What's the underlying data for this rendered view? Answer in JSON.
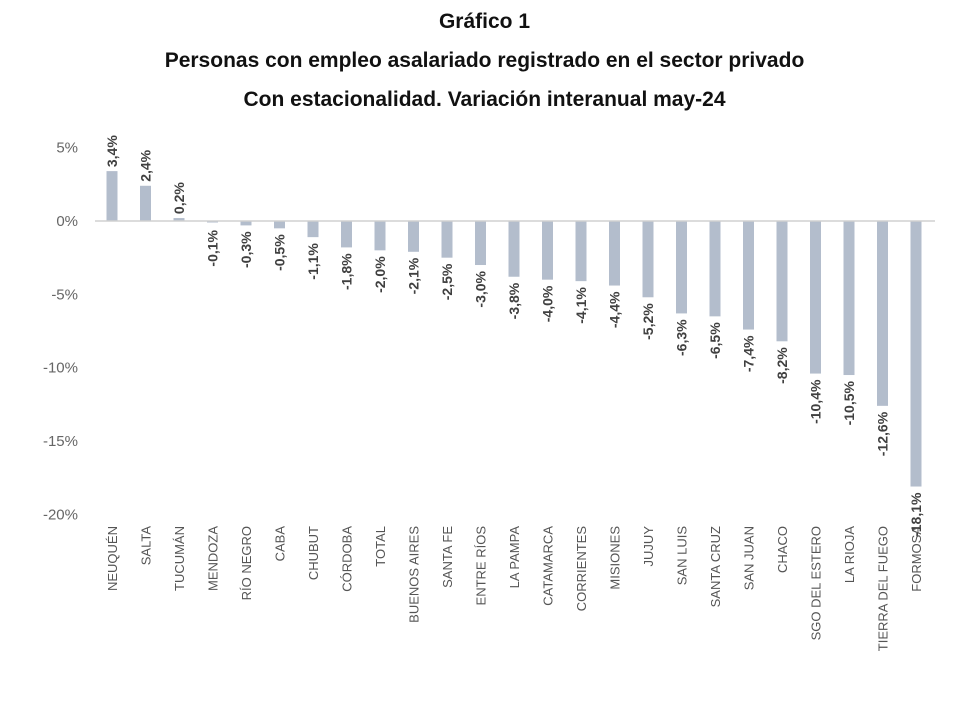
{
  "chart_data": {
    "type": "bar",
    "title": "Gráfico 1",
    "subtitle_1": "Personas con empleo asalariado registrado en el sector privado",
    "subtitle_2": "Con estacionalidad. Variación interanual may-24",
    "xlabel": "",
    "ylabel": "",
    "ylim": [
      -20,
      5
    ],
    "yticks": [
      5,
      0,
      -5,
      -10,
      -15,
      -20
    ],
    "ytick_labels": [
      "5%",
      "0%",
      "-5%",
      "-10%",
      "-15%",
      "-20%"
    ],
    "grid": false,
    "bar_color": "#b3bdcc",
    "categories": [
      "NEUQUÉN",
      "SALTA",
      "TUCUMÁN",
      "MENDOZA",
      "RÍO NEGRO",
      "CABA",
      "CHUBUT",
      "CÓRDOBA",
      "TOTAL",
      "BUENOS AIRES",
      "SANTA FE",
      "ENTRE RÍOS",
      "LA PAMPA",
      "CATAMARCA",
      "CORRIENTES",
      "MISIONES",
      "JUJUY",
      "SAN LUIS",
      "SANTA CRUZ",
      "SAN JUAN",
      "CHACO",
      "SGO DEL ESTERO",
      "LA RIOJA",
      "TIERRA DEL FUEGO",
      "FORMOSA"
    ],
    "values": [
      3.4,
      2.4,
      0.2,
      -0.1,
      -0.3,
      -0.5,
      -1.1,
      -1.8,
      -2.0,
      -2.1,
      -2.5,
      -3.0,
      -3.8,
      -4.0,
      -4.1,
      -4.4,
      -5.2,
      -6.3,
      -6.5,
      -7.4,
      -8.2,
      -10.4,
      -10.5,
      -12.6,
      -18.1
    ],
    "data_labels": [
      "3,4%",
      "2,4%",
      "0,2%",
      "-0,1%",
      "-0,3%",
      "-0,5%",
      "-1,1%",
      "-1,8%",
      "-2,0%",
      "-2,1%",
      "-2,5%",
      "-3,0%",
      "-3,8%",
      "-4,0%",
      "-4,1%",
      "-4,4%",
      "-5,2%",
      "-6,3%",
      "-6,5%",
      "-7,4%",
      "-8,2%",
      "-10,4%",
      "-10,5%",
      "-12,6%",
      "-18,1%"
    ]
  }
}
